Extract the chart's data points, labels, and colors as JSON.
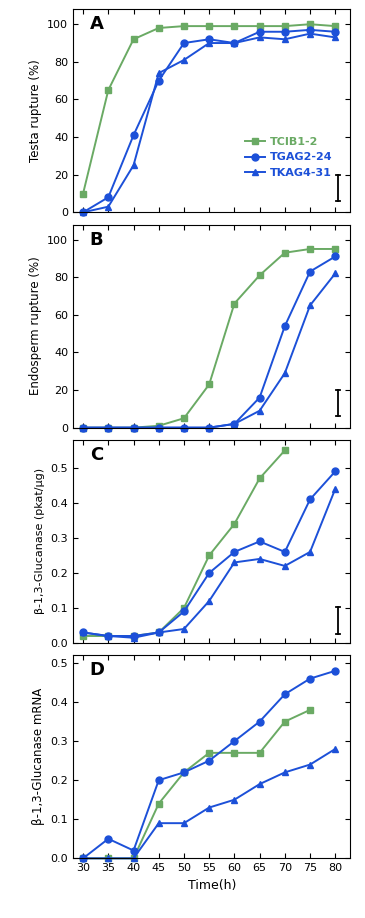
{
  "x": [
    30,
    35,
    40,
    45,
    50,
    55,
    60,
    65,
    70,
    75,
    80
  ],
  "panel_A": {
    "TCIB1_2": [
      10,
      65,
      92,
      98,
      99,
      99,
      99,
      99,
      99,
      100,
      99
    ],
    "TGAG2_24": [
      0,
      8,
      41,
      70,
      90,
      92,
      90,
      96,
      96,
      97,
      96
    ],
    "TKAG4_31": [
      0,
      3,
      25,
      74,
      81,
      90,
      90,
      93,
      92,
      95,
      93
    ]
  },
  "panel_B": {
    "TCIB1_2": [
      0,
      0,
      0,
      1,
      5,
      23,
      66,
      81,
      93,
      95,
      95
    ],
    "TGAG2_24": [
      0,
      0,
      0,
      0,
      0,
      0,
      2,
      16,
      54,
      83,
      91
    ],
    "TKAG4_31": [
      0,
      0,
      0,
      0,
      0,
      0,
      2,
      9,
      29,
      65,
      82
    ]
  },
  "panel_C": {
    "TCIB1_2": [
      0.02,
      0.02,
      0.02,
      0.03,
      0.1,
      0.25,
      0.34,
      0.47,
      0.55,
      null,
      null
    ],
    "TGAG2_24": [
      0.03,
      0.02,
      0.02,
      0.03,
      0.09,
      0.2,
      0.26,
      0.29,
      0.26,
      0.41,
      0.49
    ],
    "TKAG4_31": [
      0.03,
      0.02,
      0.015,
      0.03,
      0.04,
      0.12,
      0.23,
      0.24,
      0.22,
      0.26,
      0.44
    ]
  },
  "panel_D": {
    "TCIB1_2": [
      0,
      0,
      0,
      0.14,
      0.22,
      0.27,
      0.27,
      0.27,
      0.35,
      0.38,
      null
    ],
    "TGAG2_24": [
      0,
      0.05,
      0.02,
      0.2,
      0.22,
      0.25,
      0.3,
      0.35,
      0.42,
      0.46,
      0.48
    ],
    "TKAG4_31": [
      0,
      0,
      0,
      0.09,
      0.09,
      0.13,
      0.15,
      0.19,
      0.22,
      0.24,
      0.28
    ]
  },
  "color_green": "#6aaa64",
  "color_blue1": "#1c50d8",
  "color_blue2": "#1c50d8",
  "legend_labels": [
    "TCIB1-2",
    "TGAG2-24",
    "TKAG4-31"
  ],
  "panel_labels": [
    "A",
    "B",
    "C",
    "D"
  ],
  "ylabel_A": "Testa rupture (%)",
  "ylabel_B": "Endosperm rupture (%)",
  "ylabel_C": "β-1,3-Glucanase (pkat/μg)",
  "ylabel_D": "β-1,3-Glucanase mRNA",
  "xlabel": "Time(h)",
  "ylim_AB": [
    0,
    108
  ],
  "yticks_AB": [
    0,
    20,
    40,
    60,
    80,
    100
  ],
  "ylim_C": [
    0,
    0.58
  ],
  "yticks_C": [
    0,
    0.1,
    0.2,
    0.3,
    0.4,
    0.5
  ],
  "ylim_D": [
    0,
    0.52
  ],
  "yticks_D": [
    0,
    0.1,
    0.2,
    0.3,
    0.4,
    0.5
  ],
  "xlim": [
    28,
    83
  ],
  "xticks": [
    30,
    35,
    40,
    45,
    50,
    55,
    60,
    65,
    70,
    75,
    80
  ]
}
